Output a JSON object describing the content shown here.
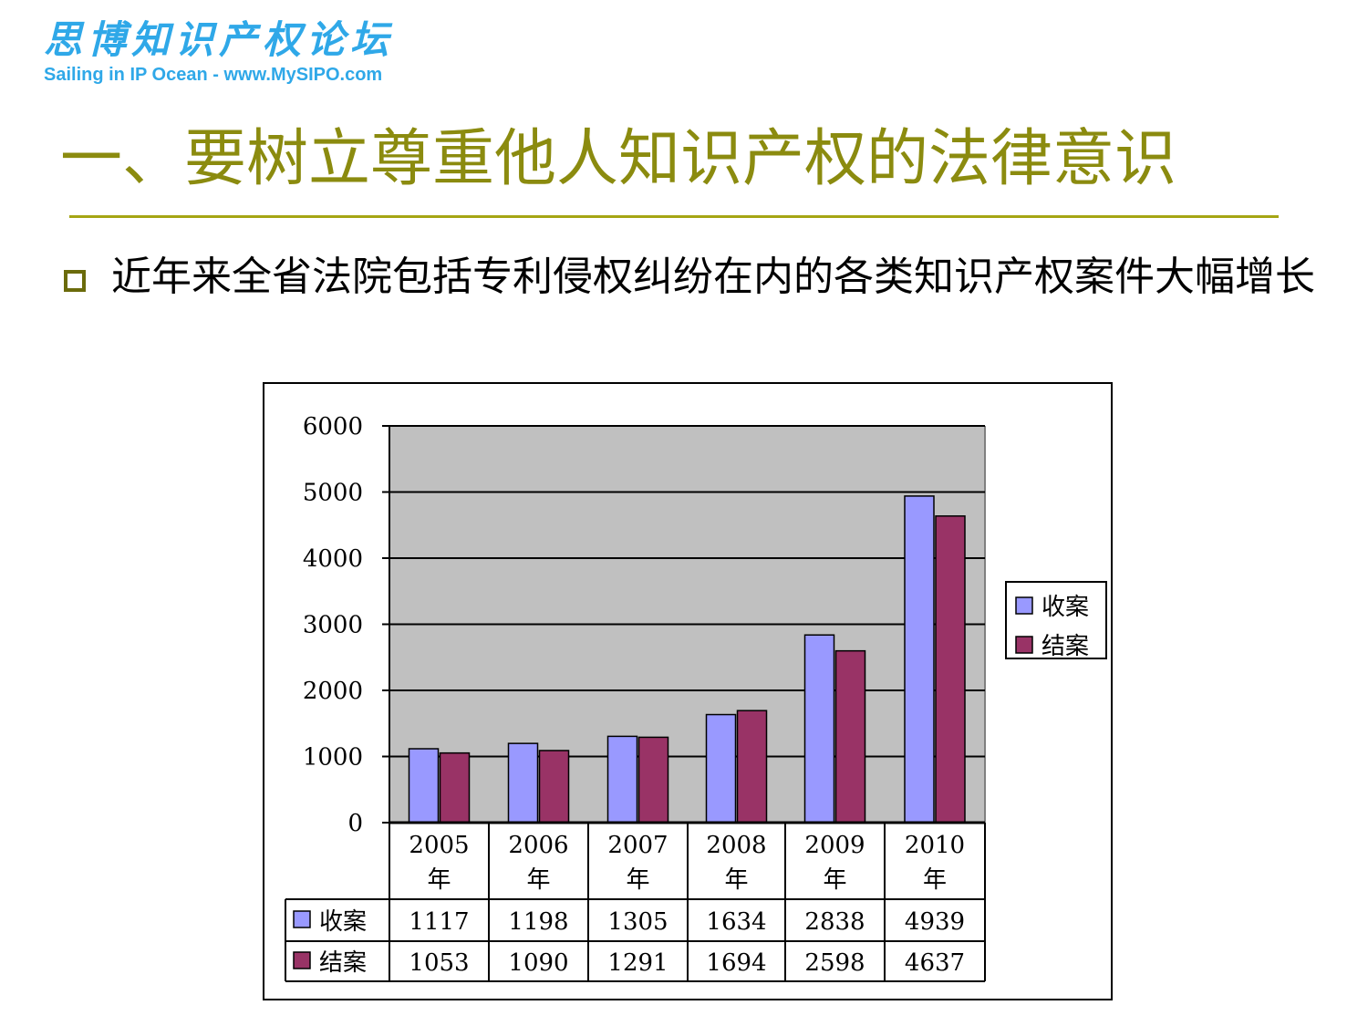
{
  "logo": {
    "cn": "思博知识产权论坛",
    "en": "Sailing in IP Ocean - www.MySIPO.com"
  },
  "title": "一、要树立尊重他人知识产权的法律意识",
  "bullet": "近年来全省法院包括专利侵权纠纷在内的各类知识产权案件大幅增长",
  "colors": {
    "title": "#8b8b0f",
    "rule": "#a5a514",
    "logo": "#2fa8e8",
    "plot_bg": "#c0c0c0",
    "series_1": "#9999ff",
    "series_2": "#993366"
  },
  "chart_data": {
    "type": "bar",
    "categories": [
      [
        "2005",
        "年"
      ],
      [
        "2006",
        "年"
      ],
      [
        "2007",
        "年"
      ],
      [
        "2008",
        "年"
      ],
      [
        "2009",
        "年"
      ],
      [
        "2010",
        "年"
      ]
    ],
    "series": [
      {
        "name": "收案",
        "values": [
          1117,
          1198,
          1305,
          1634,
          2838,
          4939
        ],
        "color": "#9999ff"
      },
      {
        "name": "结案",
        "values": [
          1053,
          1090,
          1291,
          1694,
          2598,
          4637
        ],
        "color": "#993366"
      }
    ],
    "ylim": [
      0,
      6000
    ],
    "yticks": [
      0,
      1000,
      2000,
      3000,
      4000,
      5000,
      6000
    ],
    "grid": true,
    "legend": "right",
    "data_table": true
  }
}
